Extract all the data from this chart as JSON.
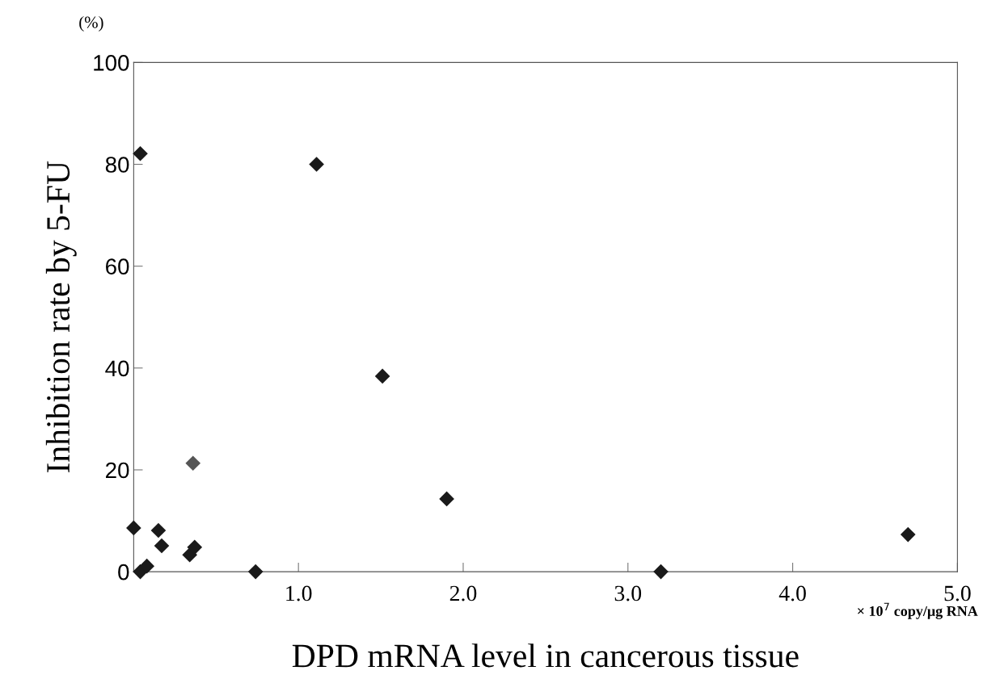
{
  "chart_data": {
    "type": "scatter",
    "xlabel": "DPD mRNA level in cancerous tissue",
    "ylabel": "Inhibition rate by 5-FU",
    "annotations": [
      "(%)",
      "× 10$^{7}$ copy/μg RNA"
    ],
    "x": [
      0,
      0.04,
      0.04,
      0.08,
      0.15,
      0.17,
      0.34,
      0.36,
      0.37,
      0.74,
      1.11,
      1.51,
      1.9,
      3.2,
      4.7
    ],
    "values": [
      8.6,
      82.1,
      0,
      1.1,
      8.1,
      5.1,
      3.3,
      21.3,
      4.8,
      0,
      80.0,
      38.4,
      14.3,
      0,
      7.3
    ],
    "colors": [
      "#1a1a1a",
      "#1a1a1a",
      "#1a1a1a",
      "#1a1a1a",
      "#1a1a1a",
      "#1a1a1a",
      "#1a1a1a",
      "#555555",
      "#1a1a1a",
      "#1a1a1a",
      "#1a1a1a",
      "#1a1a1a",
      "#1a1a1a",
      "#1a1a1a",
      "#1a1a1a"
    ],
    "xlim": [
      0,
      5
    ],
    "ylim": [
      0,
      100
    ],
    "xticks": [
      {
        "value": 1,
        "label": "1.0"
      },
      {
        "value": 2,
        "label": "2.0"
      },
      {
        "value": 3,
        "label": "3.0"
      },
      {
        "value": 4,
        "label": "4.0"
      },
      {
        "value": 5,
        "label": "5.0"
      }
    ],
    "yticks": [
      0,
      20,
      40,
      60,
      80,
      100
    ],
    "marker": "diamond",
    "grid": false
  }
}
